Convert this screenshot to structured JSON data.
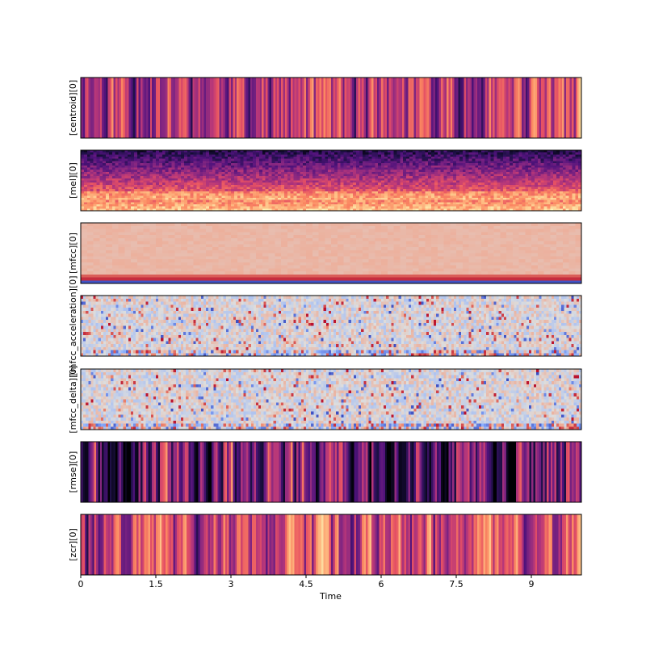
{
  "chart_data": {
    "type": "heatmap",
    "xlabel": "Time",
    "xlim": [
      0,
      10
    ],
    "xticks": [
      "0",
      "1.5",
      "3",
      "4.5",
      "6",
      "7.5",
      "9"
    ],
    "xtick_values": [
      0,
      1.5,
      3,
      4.5,
      6,
      7.5,
      9
    ],
    "colormaps": {
      "sequential": "magma",
      "diverging": "coolwarm"
    },
    "panels": [
      {
        "ylabel": "[centroid][0]",
        "colormap": "magma",
        "rows": 1,
        "cols": 260,
        "seed": 11,
        "base": 0.5,
        "amp": 0.5,
        "pattern": "bands"
      },
      {
        "ylabel": "[mel][0]",
        "colormap": "magma",
        "rows": 28,
        "cols": 160,
        "seed": 23,
        "pattern": "mel"
      },
      {
        "ylabel": "[mfcc][0]",
        "colormap": "coolwarm",
        "rows": 20,
        "cols": 80,
        "seed": 37,
        "pattern": "mfcc"
      },
      {
        "ylabel": "[mfcc_acceleration][0]",
        "colormap": "coolwarm",
        "rows": 20,
        "cols": 200,
        "seed": 41,
        "pattern": "noise"
      },
      {
        "ylabel": "[mfcc_delta][0]",
        "colormap": "coolwarm",
        "rows": 20,
        "cols": 200,
        "seed": 53,
        "pattern": "noise"
      },
      {
        "ylabel": "[rmse][0]",
        "colormap": "magma",
        "rows": 1,
        "cols": 260,
        "seed": 67,
        "base": 0.3,
        "amp": 0.6,
        "pattern": "bands"
      },
      {
        "ylabel": "[zcr][0]",
        "colormap": "magma",
        "rows": 1,
        "cols": 260,
        "seed": 79,
        "base": 0.6,
        "amp": 0.45,
        "pattern": "bands"
      }
    ]
  }
}
